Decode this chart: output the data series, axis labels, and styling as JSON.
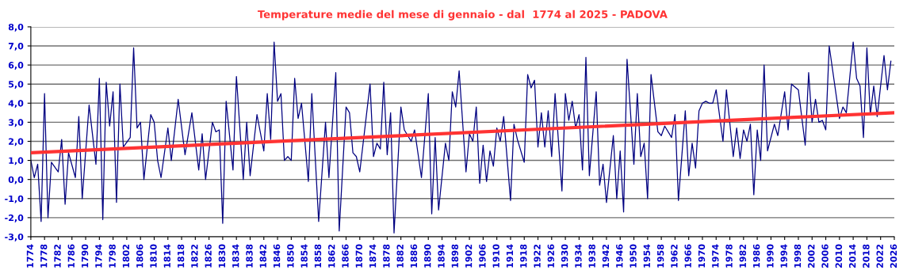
{
  "chart_data": {
    "type": "line",
    "title": "Temperature medie del mese di gennaio - dal  1774 al 2025 - PADOVA",
    "xlim": [
      1774,
      2026
    ],
    "xticks": [
      1774,
      1778,
      1782,
      1786,
      1790,
      1794,
      1798,
      1802,
      1806,
      1810,
      1814,
      1818,
      1822,
      1826,
      1830,
      1834,
      1838,
      1842,
      1846,
      1850,
      1854,
      1858,
      1862,
      1866,
      1870,
      1874,
      1878,
      1882,
      1886,
      1890,
      1894,
      1898,
      1902,
      1906,
      1910,
      1914,
      1918,
      1922,
      1926,
      1930,
      1934,
      1938,
      1942,
      1946,
      1950,
      1954,
      1958,
      1962,
      1966,
      1970,
      1974,
      1978,
      1982,
      1986,
      1990,
      1994,
      1998,
      2002,
      2006,
      2010,
      2014,
      2018,
      2022,
      2026
    ],
    "ylim": [
      -3,
      8
    ],
    "yticks": [
      {
        "value": -3,
        "label": "-3,0"
      },
      {
        "value": -2,
        "label": "-2,0"
      },
      {
        "value": -1,
        "label": "-1,0"
      },
      {
        "value": 0,
        "label": "0,0"
      },
      {
        "value": 1,
        "label": "1,0"
      },
      {
        "value": 2,
        "label": "2,0"
      },
      {
        "value": 3,
        "label": "3,0"
      },
      {
        "value": 4,
        "label": "4,0"
      },
      {
        "value": 5,
        "label": "5,0"
      },
      {
        "value": 6,
        "label": "6,0"
      },
      {
        "value": 7,
        "label": "7,0"
      },
      {
        "value": 8,
        "label": "8,0"
      }
    ],
    "grid": "y",
    "line_style": "solid",
    "series": [
      {
        "color": "#000080",
        "x": [
          1774,
          1775,
          1776,
          1777,
          1778,
          1779,
          1780,
          1782,
          1783,
          1784,
          1785,
          1787,
          1788,
          1789,
          1791,
          1793,
          1794,
          1795,
          1796,
          1797,
          1798,
          1799,
          1800,
          1801,
          1803,
          1804,
          1805,
          1806,
          1807,
          1809,
          1810,
          1811,
          1812,
          1814,
          1815,
          1817,
          1819,
          1821,
          1823,
          1824,
          1825,
          1827,
          1828,
          1829,
          1830,
          1831,
          1833,
          1834,
          1836,
          1837,
          1838,
          1840,
          1842,
          1843,
          1844,
          1845,
          1846,
          1847,
          1848,
          1849,
          1850,
          1851,
          1852,
          1853,
          1855,
          1856,
          1858,
          1860,
          1861,
          1863,
          1864,
          1866,
          1867,
          1868,
          1869,
          1870,
          1873,
          1874,
          1875,
          1876,
          1877,
          1878,
          1879,
          1880,
          1882,
          1883,
          1885,
          1886,
          1888,
          1890,
          1891,
          1892,
          1893,
          1895,
          1896,
          1897,
          1898,
          1899,
          1901,
          1902,
          1903,
          1904,
          1905,
          1906,
          1907,
          1908,
          1909,
          1910,
          1911,
          1912,
          1914,
          1915,
          1916,
          1918,
          1919,
          1920,
          1921,
          1922,
          1923,
          1924,
          1925,
          1926,
          1927,
          1929,
          1930,
          1931,
          1932,
          1933,
          1934,
          1935,
          1936,
          1937,
          1939,
          1940,
          1941,
          1942,
          1944,
          1945,
          1946,
          1947,
          1948,
          1950,
          1951,
          1952,
          1953,
          1954,
          1955,
          1957,
          1958,
          1959,
          1961,
          1962,
          1963,
          1965,
          1966,
          1967,
          1968,
          1969,
          1970,
          1971,
          1972,
          1973,
          1974,
          1976,
          1977,
          1979,
          1980,
          1981,
          1982,
          1983,
          1984,
          1985,
          1986,
          1987,
          1988,
          1989,
          1991,
          1992,
          1994,
          1995,
          1996,
          1998,
          2000,
          2001,
          2002,
          2003,
          2004,
          2005,
          2006,
          2007,
          2010,
          2011,
          2012,
          2014,
          2015,
          2016,
          2017,
          2018,
          2019,
          2020,
          2021,
          2023,
          2024,
          2025
        ],
        "values": [
          1.0,
          0.1,
          0.8,
          -2.2,
          4.5,
          -2.0,
          0.9,
          0.4,
          2.1,
          -1.3,
          1.4,
          0.1,
          3.3,
          -1.0,
          3.9,
          0.8,
          5.3,
          -2.1,
          5.1,
          2.8,
          4.6,
          -1.2,
          5.0,
          1.7,
          2.2,
          6.9,
          2.7,
          3.0,
          0.0,
          3.4,
          3.0,
          1.0,
          0.1,
          2.7,
          1.0,
          4.2,
          1.3,
          3.5,
          0.5,
          2.4,
          0.0,
          3.0,
          2.5,
          2.6,
          -2.3,
          4.1,
          0.5,
          5.4,
          0.0,
          3.0,
          0.2,
          3.4,
          1.5,
          4.5,
          2.1,
          7.2,
          4.1,
          4.5,
          1.0,
          1.2,
          1.0,
          5.3,
          3.2,
          4.0,
          -0.1,
          4.5,
          -2.2,
          3.0,
          0.1,
          5.6,
          -2.7,
          3.8,
          3.5,
          1.4,
          1.2,
          0.4,
          5.0,
          1.2,
          1.9,
          1.6,
          5.1,
          1.3,
          3.5,
          -2.8,
          3.8,
          2.6,
          2.0,
          2.6,
          0.1,
          4.5,
          -1.8,
          2.2,
          -1.6,
          1.9,
          1.0,
          4.6,
          3.8,
          5.7,
          0.4,
          2.4,
          2.0,
          3.8,
          -0.2,
          1.8,
          -0.1,
          1.5,
          0.7,
          2.7,
          2.0,
          3.3,
          -1.1,
          2.9,
          2.1,
          0.9,
          5.5,
          4.8,
          5.2,
          1.7,
          3.5,
          1.7,
          3.6,
          1.2,
          4.5,
          -0.6,
          4.5,
          3.1,
          4.1,
          2.7,
          3.4,
          0.5,
          6.4,
          0.2,
          4.6,
          -0.3,
          0.8,
          -1.2,
          2.3,
          -1.0,
          1.5,
          -1.7,
          6.3,
          0.8,
          4.5,
          1.2,
          1.9,
          -1.0,
          5.5,
          2.5,
          2.3,
          2.8,
          2.2,
          3.4,
          -1.1,
          3.6,
          0.2,
          1.9,
          0.6,
          3.6,
          4.0,
          4.1,
          4.0,
          4.0,
          4.7,
          2.0,
          4.7,
          1.2,
          2.7,
          1.1,
          2.6,
          2.0,
          2.9,
          -0.8,
          2.6,
          1.0,
          6.0,
          1.5,
          2.9,
          2.3,
          4.6,
          2.6,
          5.0,
          4.7,
          1.8,
          5.6,
          3.0,
          4.2,
          3.0,
          3.1,
          2.6,
          7.0,
          3.2,
          3.8,
          3.5,
          7.2,
          5.3,
          4.9,
          2.2,
          6.9,
          3.4,
          4.9,
          3.3,
          6.5,
          4.7,
          6.2
        ]
      },
      {
        "type": "line",
        "color": "#ff3333",
        "x": [
          1774,
          2026
        ],
        "values": [
          1.4,
          3.5
        ]
      }
    ]
  }
}
